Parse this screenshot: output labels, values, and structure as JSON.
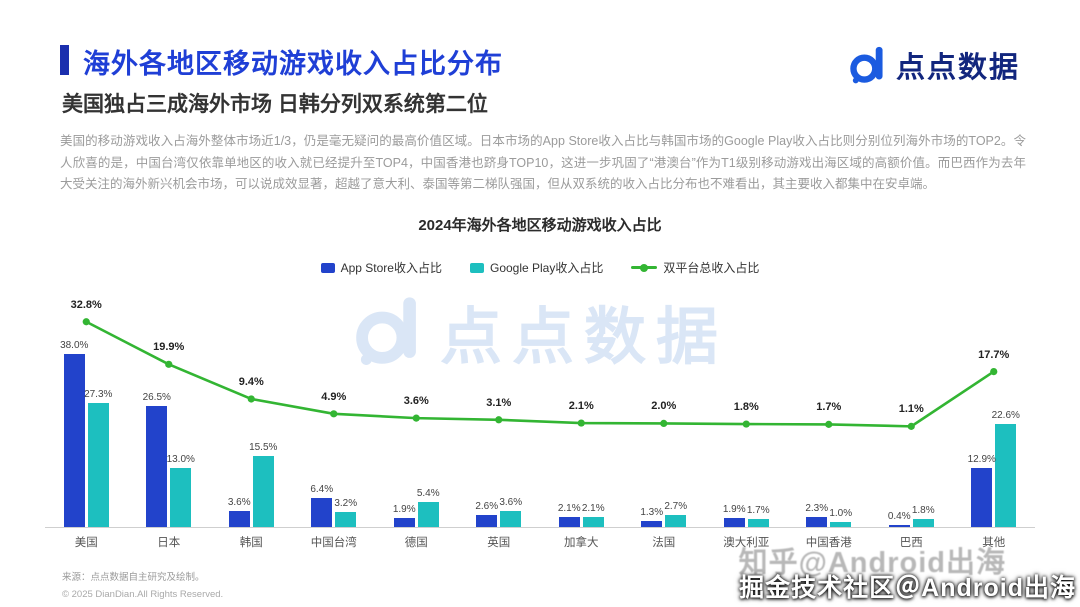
{
  "header": {
    "title": "海外各地区移动游戏收入占比分布",
    "subtitle": "美国独占三成海外市场 日韩分列双系统第二位",
    "logo_text": "点点数据"
  },
  "colors": {
    "title": "#1f3fd6",
    "accent_bar": "#1b2fae",
    "logo_icon": "#1b5be0",
    "logo_text": "#12267e",
    "app_store_bar": "#2243cb",
    "google_play_bar": "#1dbfbf",
    "total_line": "#33b533"
  },
  "intro": "美国的移动游戏收入占海外整体市场近1/3，仍是毫无疑问的最高价值区域。日本市场的App Store收入占比与韩国市场的Google Play收入占比则分别位列海外市场的TOP2。令人欣喜的是，中国台湾仅依靠单地区的收入就已经提升至TOP4，中国香港也跻身TOP10，这进一步巩固了“港澳台”作为T1级别移动游戏出海区域的高额价值。而巴西作为去年大受关注的海外新兴机会市场，可以说成效显著，超越了意大利、泰国等第二梯队强国，但从双系统的收入占比分布也不难看出，其主要收入都集中在安卓端。",
  "chart_data": {
    "type": "bar",
    "title": "2024年海外各地区移动游戏收入占比",
    "unit": "%",
    "legend_position": "top-center",
    "grid": false,
    "categories": [
      "美国",
      "日本",
      "韩国",
      "中国台湾",
      "德国",
      "英国",
      "加拿大",
      "法国",
      "澳大利亚",
      "中国香港",
      "巴西",
      "其他"
    ],
    "series": [
      {
        "name": "App Store收入占比",
        "type": "bar",
        "color": "#2243cb",
        "values": [
          38.0,
          26.5,
          3.6,
          6.4,
          1.9,
          2.6,
          2.1,
          1.3,
          1.9,
          2.3,
          0.4,
          12.9
        ]
      },
      {
        "name": "Google Play收入占比",
        "type": "bar",
        "color": "#1dbfbf",
        "values": [
          27.3,
          13.0,
          15.5,
          3.2,
          5.4,
          3.6,
          2.1,
          2.7,
          1.7,
          1.0,
          1.8,
          22.6
        ]
      },
      {
        "name": "双平台总收入占比",
        "type": "line",
        "color": "#33b533",
        "values": [
          32.8,
          19.9,
          9.4,
          4.9,
          3.6,
          3.1,
          2.1,
          2.0,
          1.8,
          1.7,
          1.1,
          17.7
        ]
      }
    ]
  },
  "watermarks": {
    "chart": "点点数据",
    "gray": "知乎@Android出海",
    "white": "掘金技术社区＠Android出海"
  },
  "footer": {
    "source": "来源：点点数据自主研究及绘制。",
    "copyright": "© 2025 DianDian.All Rights Reserved."
  }
}
